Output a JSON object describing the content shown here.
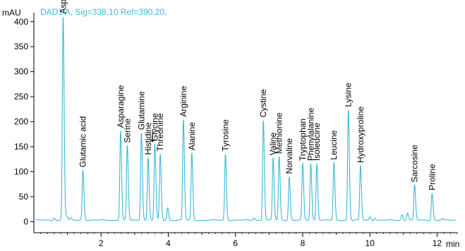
{
  "chart_data": {
    "type": "line",
    "title": "",
    "signal_label": "DAD1 A, Sig=338,10 Ref=390,20,",
    "ylabel": "mAU",
    "xlabel": "min",
    "xlim": [
      0,
      12.6
    ],
    "ylim": [
      -22,
      418
    ],
    "x_ticks": [
      2,
      4,
      6,
      8,
      10,
      12
    ],
    "y_ticks": [
      0,
      50,
      100,
      150,
      200,
      250,
      300,
      350,
      400
    ],
    "x_tick_labels": [
      "2",
      "4",
      "6",
      "8",
      "10",
      "12"
    ],
    "y_tick_labels": [
      "0",
      "50",
      "100",
      "150",
      "200",
      "250",
      "300",
      "350",
      "400"
    ],
    "grid": false,
    "legend": "none",
    "colors": {
      "trace": "#3cb8d6",
      "signal_label": "#3cb8d6",
      "axis": "#000000"
    },
    "baseline": 3,
    "peaks": [
      {
        "name": "Aspartic acid",
        "x": 0.87,
        "y": 410
      },
      {
        "name": "Glutamic acid",
        "x": 1.46,
        "y": 103
      },
      {
        "name": "Asparagine",
        "x": 2.58,
        "y": 182
      },
      {
        "name": "Serine",
        "x": 2.78,
        "y": 152
      },
      {
        "name": "Glutamine",
        "x": 3.2,
        "y": 178
      },
      {
        "name": "Histidine",
        "x": 3.4,
        "y": 128
      },
      {
        "name": "Glycine",
        "x": 3.6,
        "y": 155
      },
      {
        "name": "Threonine",
        "x": 3.76,
        "y": 135
      },
      {
        "name": "Arginine",
        "x": 4.45,
        "y": 204
      },
      {
        "name": "Alanine",
        "x": 4.7,
        "y": 137
      },
      {
        "name": "Tyrosine",
        "x": 5.7,
        "y": 135
      },
      {
        "name": "Cystine",
        "x": 6.83,
        "y": 203
      },
      {
        "name": "Valine",
        "x": 7.12,
        "y": 127
      },
      {
        "name": "Methionine",
        "x": 7.3,
        "y": 130
      },
      {
        "name": "Norvaline",
        "x": 7.6,
        "y": 90
      },
      {
        "name": "Tryptophan",
        "x": 8.0,
        "y": 116
      },
      {
        "name": "Phenylalanine",
        "x": 8.24,
        "y": 116
      },
      {
        "name": "Isoleucine",
        "x": 8.42,
        "y": 116
      },
      {
        "name": "Leucine",
        "x": 8.93,
        "y": 118
      },
      {
        "name": "Lysine",
        "x": 9.36,
        "y": 224
      },
      {
        "name": "Hydroxyproline",
        "x": 9.72,
        "y": 112
      },
      {
        "name": "Sarcosine",
        "x": 11.33,
        "y": 73
      },
      {
        "name": "Proline",
        "x": 11.85,
        "y": 57
      }
    ],
    "unlabeled_peaks": [
      {
        "x": 0.6,
        "y": 8
      },
      {
        "x": 0.97,
        "y": 12
      },
      {
        "x": 1.1,
        "y": 7
      },
      {
        "x": 3.98,
        "y": 28
      },
      {
        "x": 6.55,
        "y": 8
      },
      {
        "x": 10.0,
        "y": 10
      },
      {
        "x": 10.15,
        "y": 7
      },
      {
        "x": 10.95,
        "y": 14
      },
      {
        "x": 11.12,
        "y": 18
      },
      {
        "x": 12.15,
        "y": 6
      }
    ]
  }
}
